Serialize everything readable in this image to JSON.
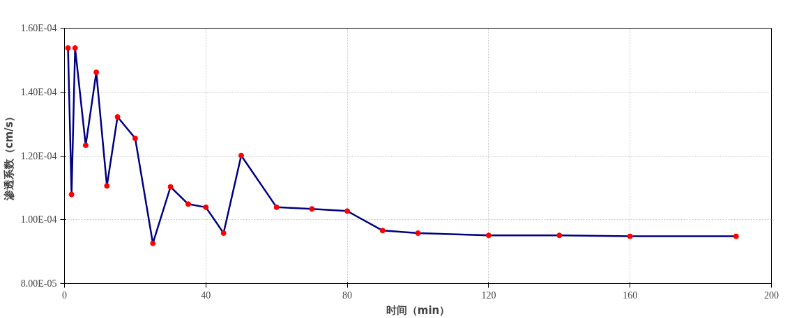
{
  "chart_data": {
    "type": "line",
    "xlabel": "时间（min）",
    "ylabel": "渗透系数（cm/s）",
    "x": [
      1,
      2,
      3,
      6,
      9,
      12,
      15,
      20,
      25,
      30,
      35,
      40,
      45,
      50,
      60,
      70,
      80,
      90,
      100,
      120,
      140,
      160,
      190
    ],
    "series": [
      {
        "color": "#000080",
        "marker": "none",
        "values": [
          0.0001538,
          0.0001079,
          0.0001538,
          0.0001233,
          0.0001462,
          0.0001106,
          0.0001322,
          0.0001255,
          9.26e-05,
          0.0001103,
          0.0001049,
          0.0001039,
          9.58e-05,
          0.0001201,
          0.0001039,
          0.0001034,
          0.0001027,
          9.66e-05,
          9.58e-05,
          9.51e-05,
          9.51e-05,
          9.48e-05,
          9.48e-05
        ]
      },
      {
        "type": "scatter",
        "color": "#ff0000",
        "marker": "circle",
        "values": [
          0.0001538,
          0.0001079,
          0.0001538,
          0.0001233,
          0.0001462,
          0.0001106,
          0.0001322,
          0.0001255,
          9.26e-05,
          0.0001103,
          0.0001049,
          0.0001039,
          9.58e-05,
          0.0001201,
          0.0001039,
          0.0001034,
          0.0001027,
          9.66e-05,
          9.58e-05,
          9.51e-05,
          9.51e-05,
          9.48e-05,
          9.48e-05
        ]
      }
    ],
    "xlim": [
      0,
      200
    ],
    "xticks": [
      0,
      40,
      80,
      120,
      160,
      200
    ],
    "ylim": [
      8e-05,
      0.00016
    ],
    "yticks": [
      {
        "value": 8e-05,
        "label": "8.00E-05"
      },
      {
        "value": 0.0001,
        "label": "1.00E-04"
      },
      {
        "value": 0.00012,
        "label": "1.20E-04"
      },
      {
        "value": 0.00014,
        "label": "1.40E-04"
      },
      {
        "value": 0.00016,
        "label": "1.60E-04"
      }
    ],
    "grid": true,
    "line_style": "solid"
  }
}
